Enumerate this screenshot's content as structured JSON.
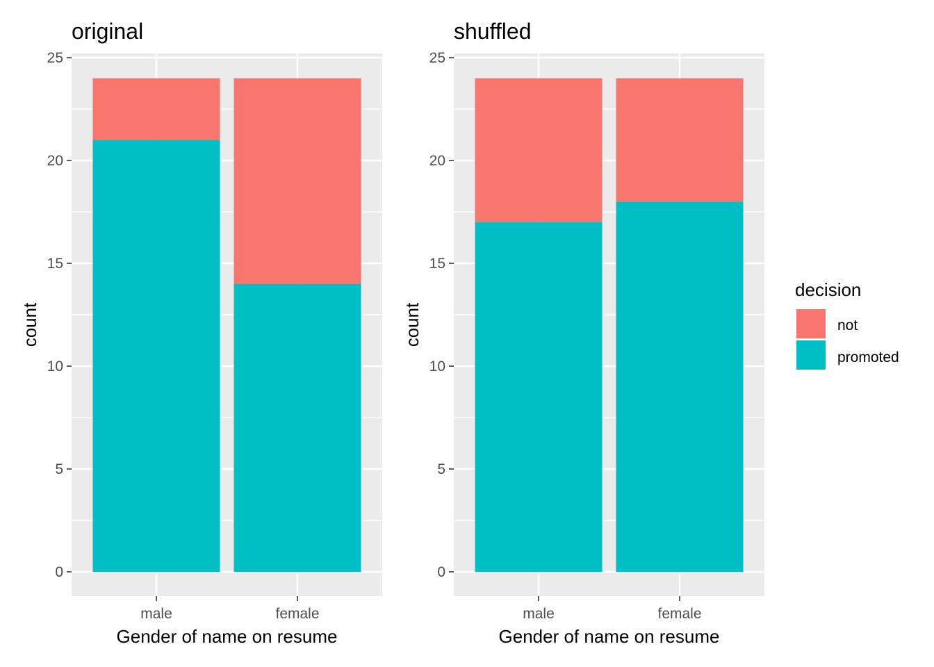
{
  "chart_data": [
    {
      "type": "bar",
      "stacked": true,
      "title": "original",
      "xlabel": "Gender of name on resume",
      "ylabel": "count",
      "categories": [
        "male",
        "female"
      ],
      "ylim": [
        0,
        25
      ],
      "yticks": [
        0,
        5,
        10,
        15,
        20,
        25
      ],
      "grid": true,
      "series": [
        {
          "name": "promoted",
          "values": [
            21,
            14
          ]
        },
        {
          "name": "not",
          "values": [
            3,
            10
          ]
        }
      ]
    },
    {
      "type": "bar",
      "stacked": true,
      "title": "shuffled",
      "xlabel": "Gender of name on resume",
      "ylabel": "count",
      "categories": [
        "male",
        "female"
      ],
      "ylim": [
        0,
        25
      ],
      "yticks": [
        0,
        5,
        10,
        15,
        20,
        25
      ],
      "grid": true,
      "series": [
        {
          "name": "promoted",
          "values": [
            17,
            18
          ]
        },
        {
          "name": "not",
          "values": [
            7,
            6
          ]
        }
      ]
    }
  ],
  "legend": {
    "title": "decision",
    "placement": "right",
    "items": [
      {
        "label": "not",
        "color": "#F8766D"
      },
      {
        "label": "promoted",
        "color": "#00BFC4"
      }
    ]
  },
  "colors": {
    "panel_background": "#EBEBEB",
    "grid_line": "#FFFFFF",
    "not": "#F8766D",
    "promoted": "#00BFC4"
  }
}
